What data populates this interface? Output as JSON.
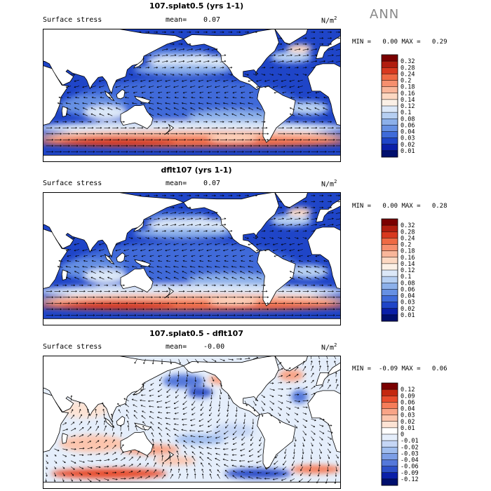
{
  "season": "ANN",
  "units_base": "N/m",
  "units_exp": "2",
  "panels": [
    {
      "title": "107.splat0.5 (yrs 1-1)",
      "field": "Surface stress",
      "mean_label": "mean=",
      "mean_value": "0.07",
      "min_label": "MIN =",
      "min_value": "0.00",
      "max_label": "MAX =",
      "max_value": "0.29",
      "colorbar_labels": [
        "0.32",
        "0.28",
        "0.24",
        "0.2",
        "0.18",
        "0.16",
        "0.14",
        "0.12",
        "0.1",
        "0.08",
        "0.06",
        "0.04",
        "0.03",
        "0.02",
        "0.01"
      ]
    },
    {
      "title": "dflt107 (yrs 1-1)",
      "field": "Surface stress",
      "mean_label": "mean=",
      "mean_value": "0.07",
      "min_label": "MIN =",
      "min_value": "0.00",
      "max_label": "MAX =",
      "max_value": "0.28",
      "colorbar_labels": [
        "0.32",
        "0.28",
        "0.24",
        "0.2",
        "0.18",
        "0.16",
        "0.14",
        "0.12",
        "0.1",
        "0.08",
        "0.06",
        "0.04",
        "0.03",
        "0.02",
        "0.01"
      ]
    },
    {
      "title": "107.splat0.5 - dflt107",
      "field": "Surface stress",
      "mean_label": "mean=",
      "mean_value": "-0.00",
      "min_label": "MIN =",
      "min_value": "-0.09",
      "max_label": "MAX =",
      "max_value": "0.06",
      "colorbar_labels": [
        "0.12",
        "0.09",
        "0.06",
        "0.04",
        "0.03",
        "0.02",
        "0.01",
        "0",
        "-0.01",
        "-0.02",
        "-0.03",
        "-0.04",
        "-0.06",
        "-0.09",
        "-0.12"
      ]
    }
  ],
  "colors": {
    "abs_scale": [
      "#7a0000",
      "#b01d0f",
      "#d8391f",
      "#ef6a44",
      "#f68f6e",
      "#f9b69a",
      "#fcd8c2",
      "#fbf0e6",
      "#dce8f8",
      "#b6cff2",
      "#8cb0ea",
      "#6690e3",
      "#3f6bd9",
      "#1f45c8",
      "#0a1fa8",
      "#000f6e"
    ],
    "diff_scale": [
      "#7a0000",
      "#c4280f",
      "#e84d2d",
      "#f57d5a",
      "#f9a487",
      "#fcc5ad",
      "#fde3d4",
      "#ffffff",
      "#e5eefb",
      "#c5d6f5",
      "#a0bdee",
      "#7c9ee6",
      "#5478da",
      "#2d50c8",
      "#0a1fa8",
      "#000f6e"
    ],
    "land": "#ffffff",
    "coast": "#000000"
  },
  "chart_data": [
    {
      "type": "heatmap",
      "title": "107.splat0.5 (yrs 1-1)",
      "variable": "Surface stress",
      "units": "N/m^2",
      "mean": 0.07,
      "min": 0.0,
      "max": 0.29,
      "contour_levels": [
        0.01,
        0.02,
        0.03,
        0.04,
        0.06,
        0.08,
        0.1,
        0.12,
        0.14,
        0.16,
        0.18,
        0.2,
        0.24,
        0.28,
        0.32
      ],
      "overlay": "wind stress vectors"
    },
    {
      "type": "heatmap",
      "title": "dflt107 (yrs 1-1)",
      "variable": "Surface stress",
      "units": "N/m^2",
      "mean": 0.07,
      "min": 0.0,
      "max": 0.28,
      "contour_levels": [
        0.01,
        0.02,
        0.03,
        0.04,
        0.06,
        0.08,
        0.1,
        0.12,
        0.14,
        0.16,
        0.18,
        0.2,
        0.24,
        0.28,
        0.32
      ],
      "overlay": "wind stress vectors"
    },
    {
      "type": "heatmap",
      "title": "107.splat0.5 - dflt107",
      "variable": "Surface stress",
      "units": "N/m^2",
      "mean": -0.0,
      "min": -0.09,
      "max": 0.06,
      "contour_levels": [
        -0.12,
        -0.09,
        -0.06,
        -0.04,
        -0.03,
        -0.02,
        -0.01,
        0,
        0.01,
        0.02,
        0.03,
        0.04,
        0.06,
        0.09,
        0.12
      ],
      "overlay": "wind stress difference vectors"
    }
  ]
}
